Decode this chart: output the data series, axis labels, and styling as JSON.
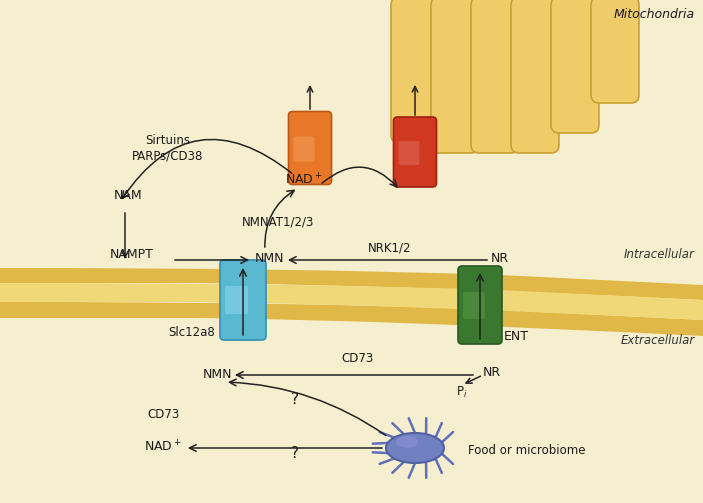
{
  "bg_color": "#f5efcf",
  "mito_outer_color": "#e8c060",
  "mito_inner_color": "#f5d878",
  "mito_crista_color": "#e8c060",
  "mito_membrane_color": "#d4a840",
  "cell_mem_color": "#e0b84a",
  "cell_mem_dark": "#c8a030",
  "intracellular_bg": "#f5efcf",
  "extracellular_bg": "#e8f0d8",
  "orange_t_color": "#e87030",
  "orange_t_light": "#f09050",
  "red_t_color": "#cc3820",
  "red_t_light": "#e05040",
  "blue_t_color": "#5ab8d0",
  "blue_t_light": "#80d0e8",
  "green_t_color": "#3a7830",
  "green_t_light": "#5a9848",
  "bacteria_color": "#6878b8",
  "bacteria_light": "#8898d0",
  "text_color": "#1a1a1a",
  "arrow_color": "#222222",
  "intracellular_label": "Intracellular",
  "extracellular_label": "Extracellular",
  "mitochondria_label": "Mitochondria"
}
